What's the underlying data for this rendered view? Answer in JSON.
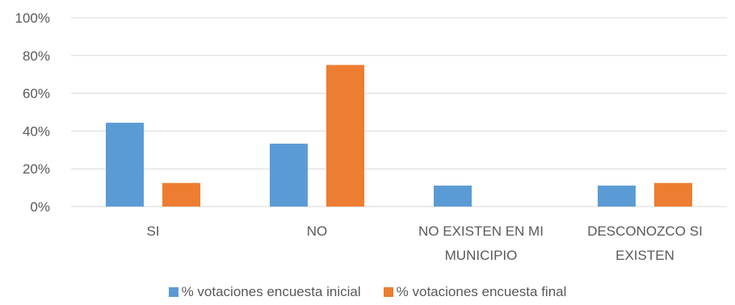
{
  "chart_data": {
    "type": "bar",
    "categories": [
      [
        "SI"
      ],
      [
        "NO"
      ],
      [
        "NO EXISTEN EN MI",
        "MUNICIPIO"
      ],
      [
        "DESCONOZCO SI",
        "EXISTEN"
      ]
    ],
    "series": [
      {
        "name": "% votaciones encuesta inicial",
        "color": "#5B9BD5",
        "values": [
          44.4,
          33.3,
          11.1,
          11.1
        ]
      },
      {
        "name": "% votaciones encuesta final",
        "color": "#ED7D31",
        "values": [
          12.5,
          75.0,
          0,
          12.5
        ]
      }
    ],
    "yticks": [
      "0%",
      "20%",
      "40%",
      "60%",
      "80%",
      "100%"
    ],
    "ylim": [
      0,
      100
    ],
    "grid": true,
    "legend_position": "bottom",
    "gridline_color": "#D9D9D9"
  }
}
